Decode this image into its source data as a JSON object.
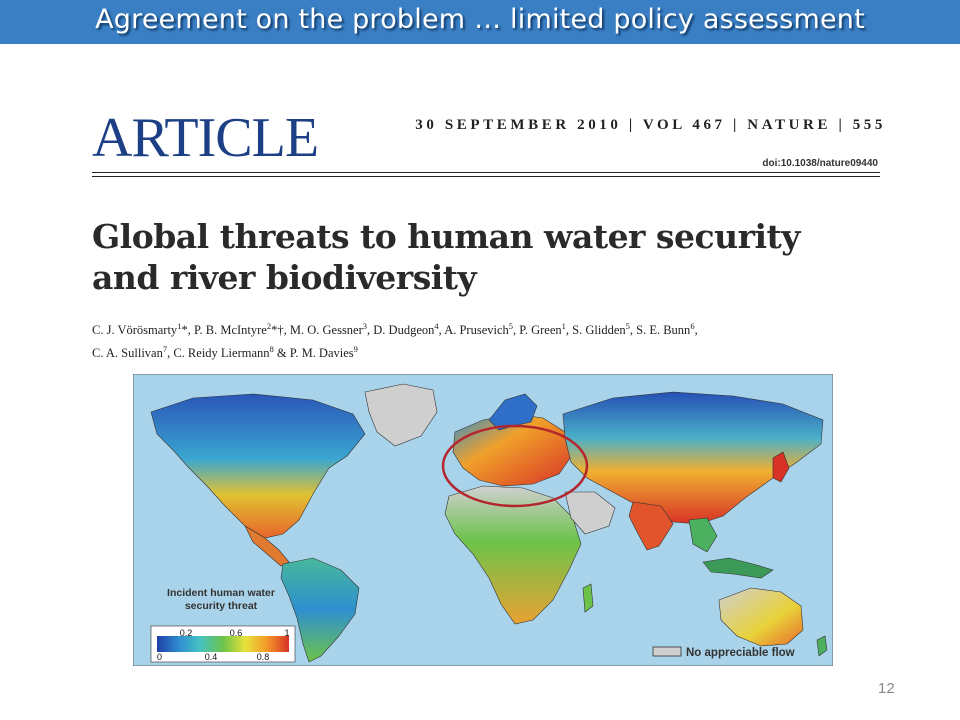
{
  "slide": {
    "title": "Agreement on the problem … limited policy assessment",
    "number": "12"
  },
  "article": {
    "label": "ARTICLE",
    "issue_line": "30 SEPTEMBER 2010 | VOL 467 | NATURE | 555",
    "doi": "doi:10.1038/nature09440",
    "title_line1": "Global threats to human water security",
    "title_line2": "and river biodiversity",
    "authors_line1": [
      {
        "name": "C. J. Vörösmarty",
        "sup": "1",
        "mark": "*",
        "sep": ", "
      },
      {
        "name": "P. B. McIntyre",
        "sup": "2",
        "mark": "*†",
        "sep": ", "
      },
      {
        "name": "M. O. Gessner",
        "sup": "3",
        "mark": "",
        "sep": ", "
      },
      {
        "name": "D. Dudgeon",
        "sup": "4",
        "mark": "",
        "sep": ", "
      },
      {
        "name": "A. Prusevich",
        "sup": "5",
        "mark": "",
        "sep": ", "
      },
      {
        "name": "P. Green",
        "sup": "1",
        "mark": "",
        "sep": ", "
      },
      {
        "name": "S. Glidden",
        "sup": "5",
        "mark": "",
        "sep": ", "
      },
      {
        "name": "S. E. Bunn",
        "sup": "6",
        "mark": "",
        "sep": ","
      }
    ],
    "authors_line2": [
      {
        "name": "C. A. Sullivan",
        "sup": "7",
        "mark": "",
        "sep": ", "
      },
      {
        "name": "C. Reidy Liermann",
        "sup": "8",
        "mark": "",
        "sep": " & "
      },
      {
        "name": "P. M. Davies",
        "sup": "9",
        "mark": "",
        "sep": ""
      }
    ]
  },
  "map": {
    "legend_title_line1": "Incident human water",
    "legend_title_line2": "security threat",
    "legend_ticks_top": [
      "0.2",
      "0.6",
      "1"
    ],
    "legend_ticks_bottom": [
      "0",
      "0.4",
      "0.8"
    ],
    "no_flow_label": "No appreciable flow",
    "colors": {
      "ocean": "#a9d3ea",
      "no_flow": "#cfcfcf",
      "scale": [
        "#1f3fa8",
        "#2f8fd0",
        "#46c3c0",
        "#6cc34a",
        "#e8e23a",
        "#f39a2a",
        "#d83226"
      ],
      "highlight_circle": "#b3262d"
    }
  }
}
